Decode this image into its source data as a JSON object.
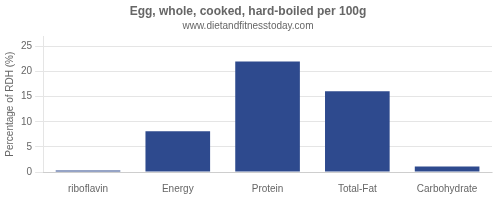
{
  "chart_data": {
    "type": "bar",
    "title": "Egg, whole, cooked, hard-boiled per 100g",
    "subtitle": "www.dietandfitnesstoday.com",
    "categories": [
      "riboflavin",
      "Energy",
      "Protein",
      "Total-Fat",
      "Carbohydrate"
    ],
    "values": [
      0.3,
      8.1,
      22.0,
      16.1,
      1.1
    ],
    "color": "#2e4a8e",
    "ylabel": "Percentage of RDH (%)",
    "ylim": [
      0,
      27
    ],
    "yticks": [
      0,
      5,
      10,
      15,
      20,
      25
    ],
    "grid": true
  }
}
